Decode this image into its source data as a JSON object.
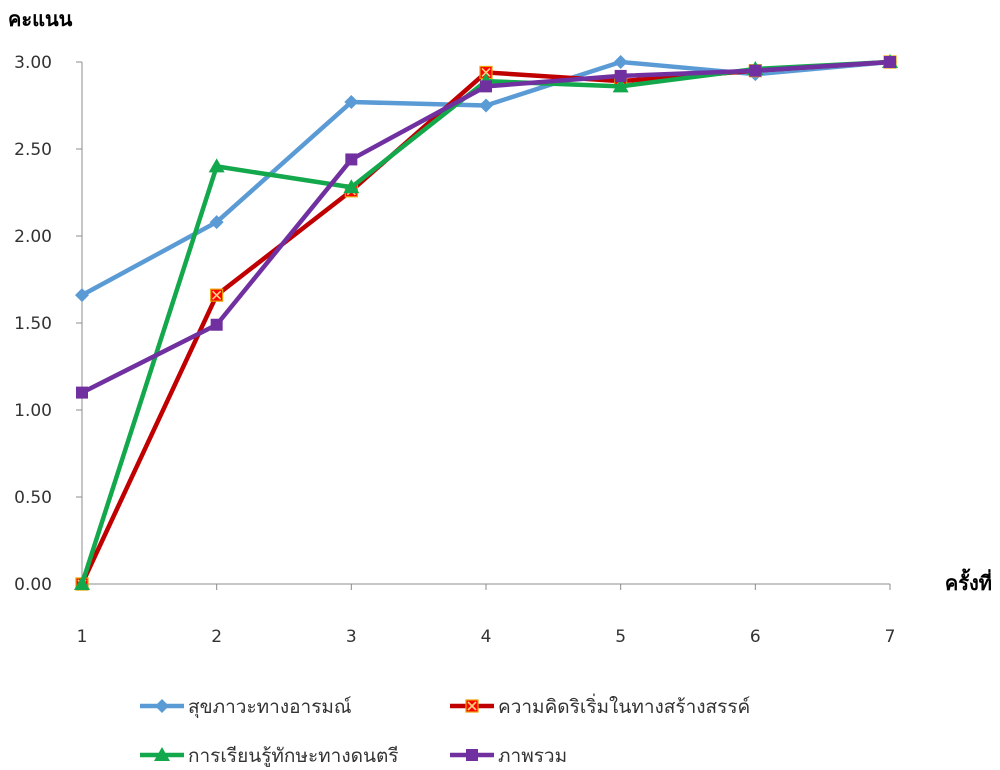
{
  "chart_data": {
    "type": "line",
    "title": "",
    "ylabel": "คะแนน",
    "xlabel": "ครั้งที่",
    "x": [
      1,
      2,
      3,
      4,
      5,
      6,
      7
    ],
    "ylim": [
      0,
      3
    ],
    "yticks": [
      "0.00",
      "0.50",
      "1.00",
      "1.50",
      "2.00",
      "2.50",
      "3.00"
    ],
    "grid": false,
    "legend_position": "bottom",
    "series": [
      {
        "name": "สุขภาวะทางอารมณ์",
        "color": "#5b9bd5",
        "marker": "diamond",
        "values": [
          1.66,
          2.08,
          2.77,
          2.75,
          3.0,
          2.93,
          3.0
        ]
      },
      {
        "name": "ความคิดริเริ่มในทางสร้างสรรค์",
        "color": "#c00000",
        "marker": "square-x",
        "values": [
          0.0,
          1.66,
          2.26,
          2.94,
          2.89,
          2.95,
          3.0
        ]
      },
      {
        "name": "การเรียนรู้ทักษะทางดนตรี",
        "color": "#13a84c",
        "marker": "triangle",
        "values": [
          0.0,
          2.4,
          2.28,
          2.89,
          2.86,
          2.96,
          3.0
        ]
      },
      {
        "name": "ภาพรวม",
        "color": "#7030a0",
        "marker": "square",
        "values": [
          1.1,
          1.49,
          2.44,
          2.86,
          2.92,
          2.95,
          3.0
        ]
      }
    ]
  }
}
